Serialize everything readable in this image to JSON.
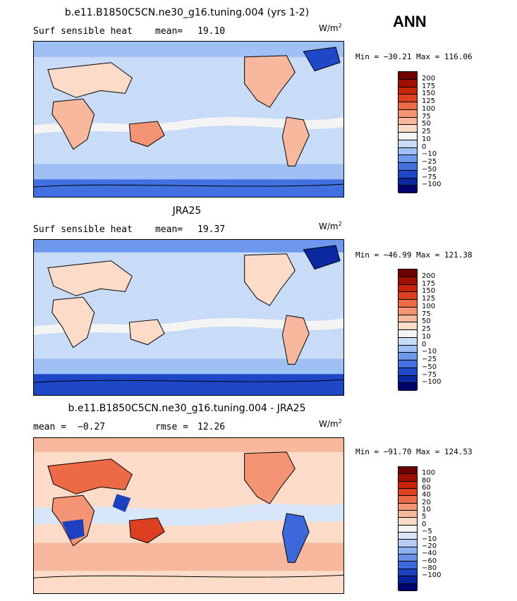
{
  "season": "ANN",
  "colors": {
    "abs": [
      "#6e0000",
      "#a00e00",
      "#c8240a",
      "#dc4020",
      "#ec6a46",
      "#f49474",
      "#f8b89e",
      "#fcdcc8",
      "#f4f4f4",
      "#c8dcf8",
      "#9ec0f4",
      "#6e98ec",
      "#4270e0",
      "#1e48c8",
      "#0a28a0",
      "#00006e"
    ],
    "diff": [
      "#6e0000",
      "#a00e00",
      "#c8240a",
      "#dc4020",
      "#ec6a46",
      "#f49474",
      "#f8b89e",
      "#fcdcc8",
      "#f4f4f4",
      "#d8e6fa",
      "#b4ccf6",
      "#8cb0f0",
      "#6890e8",
      "#3c68dc",
      "#1c40c0",
      "#08209a",
      "#00006e"
    ]
  },
  "panels": [
    {
      "title": "b.e11.B1850C5CN.ne30_g16.tuning.004 (yrs 1-2)",
      "left_label": "Surf sensible heat",
      "mean_label": "mean=",
      "mean_value": "19.10",
      "units": "W/m",
      "units_sup": "2",
      "minmax": "Min = −30.21 Max = 116.06",
      "ticks": [
        "200",
        "175",
        "150",
        "125",
        "100",
        "75",
        "50",
        "25",
        "10",
        "0",
        "−10",
        "−25",
        "−50",
        "−75",
        "−100"
      ]
    },
    {
      "title": "JRA25",
      "left_label": "Surf sensible heat",
      "mean_label": "mean=",
      "mean_value": "19.37",
      "units": "W/m",
      "units_sup": "2",
      "minmax": "Min = −46.99 Max = 121.38",
      "ticks": [
        "200",
        "175",
        "150",
        "125",
        "100",
        "75",
        "50",
        "25",
        "10",
        "0",
        "−10",
        "−25",
        "−50",
        "−75",
        "−100"
      ]
    },
    {
      "title": "b.e11.B1850C5CN.ne30_g16.tuning.004 - JRA25",
      "left_label": "mean =",
      "mean_label": "",
      "mean_value": "−0.27",
      "rmse_label": "rmse =",
      "rmse_value": "12.26",
      "units": "W/m",
      "units_sup": "2",
      "minmax": "Min = −91.70 Max = 124.53",
      "ticks": [
        "100",
        "80",
        "60",
        "40",
        "20",
        "10",
        "5",
        "0",
        "−5",
        "−10",
        "−20",
        "−40",
        "−60",
        "−80",
        "−100"
      ]
    }
  ]
}
